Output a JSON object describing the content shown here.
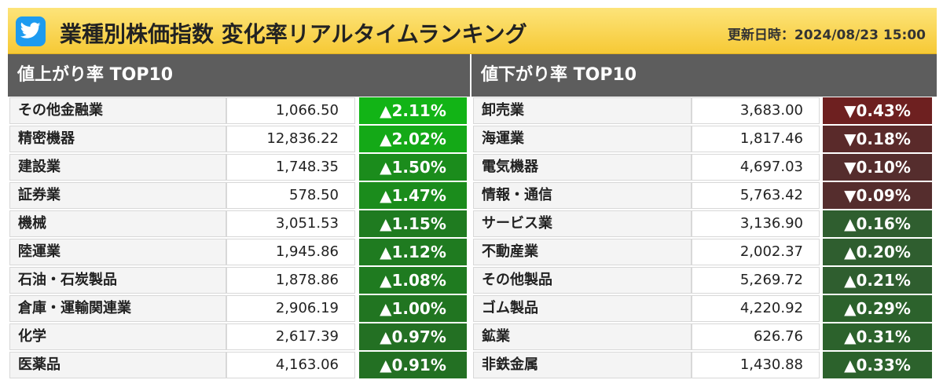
{
  "header": {
    "title": "業種別株価指数 変化率リアルタイムランキング",
    "updated_label": "更新日時：",
    "updated_value": "2024/08/23 15:00",
    "twitter_icon": "twitter-bird-icon",
    "background_color": "#f6c935"
  },
  "gainers": {
    "heading": "値上がり率 TOP10",
    "rows": [
      {
        "name": "その他金融業",
        "value": "1,066.50",
        "change": "▲2.11%",
        "color": "#12b416"
      },
      {
        "name": "精密機器",
        "value": "12,836.22",
        "change": "▲2.02%",
        "color": "#14a917"
      },
      {
        "name": "建設業",
        "value": "1,748.35",
        "change": "▲1.50%",
        "color": "#1b8c1c"
      },
      {
        "name": "証券業",
        "value": "578.50",
        "change": "▲1.47%",
        "color": "#1b8c1c"
      },
      {
        "name": "機械",
        "value": "3,051.53",
        "change": "▲1.15%",
        "color": "#1f7b20"
      },
      {
        "name": "陸運業",
        "value": "1,945.86",
        "change": "▲1.12%",
        "color": "#1f7b20"
      },
      {
        "name": "石油・石炭製品",
        "value": "1,878.86",
        "change": "▲1.08%",
        "color": "#1f7b20"
      },
      {
        "name": "倉庫・運輸関連業",
        "value": "2,906.19",
        "change": "▲1.00%",
        "color": "#217521"
      },
      {
        "name": "化学",
        "value": "2,617.39",
        "change": "▲0.97%",
        "color": "#237023"
      },
      {
        "name": "医薬品",
        "value": "4,163.06",
        "change": "▲0.91%",
        "color": "#237023"
      }
    ]
  },
  "losers": {
    "heading": "値下がり率 TOP10",
    "rows": [
      {
        "name": "卸売業",
        "value": "3,683.00",
        "change": "▼0.43%",
        "color": "#6e2020"
      },
      {
        "name": "海運業",
        "value": "1,817.46",
        "change": "▼0.18%",
        "color": "#5a2a2a"
      },
      {
        "name": "電気機器",
        "value": "4,697.03",
        "change": "▼0.10%",
        "color": "#552d2d"
      },
      {
        "name": "情報・通信",
        "value": "5,763.42",
        "change": "▼0.09%",
        "color": "#552d2d"
      },
      {
        "name": "サービス業",
        "value": "3,136.90",
        "change": "▲0.16%",
        "color": "#2f5e2f"
      },
      {
        "name": "不動産業",
        "value": "2,002.37",
        "change": "▲0.20%",
        "color": "#2f5e2f"
      },
      {
        "name": "その他製品",
        "value": "5,269.72",
        "change": "▲0.21%",
        "color": "#2f5e2f"
      },
      {
        "name": "ゴム製品",
        "value": "4,220.92",
        "change": "▲0.29%",
        "color": "#2c622c"
      },
      {
        "name": "鉱業",
        "value": "626.76",
        "change": "▲0.31%",
        "color": "#2c622c"
      },
      {
        "name": "非鉄金属",
        "value": "1,430.88",
        "change": "▲0.33%",
        "color": "#2c622c"
      }
    ]
  }
}
